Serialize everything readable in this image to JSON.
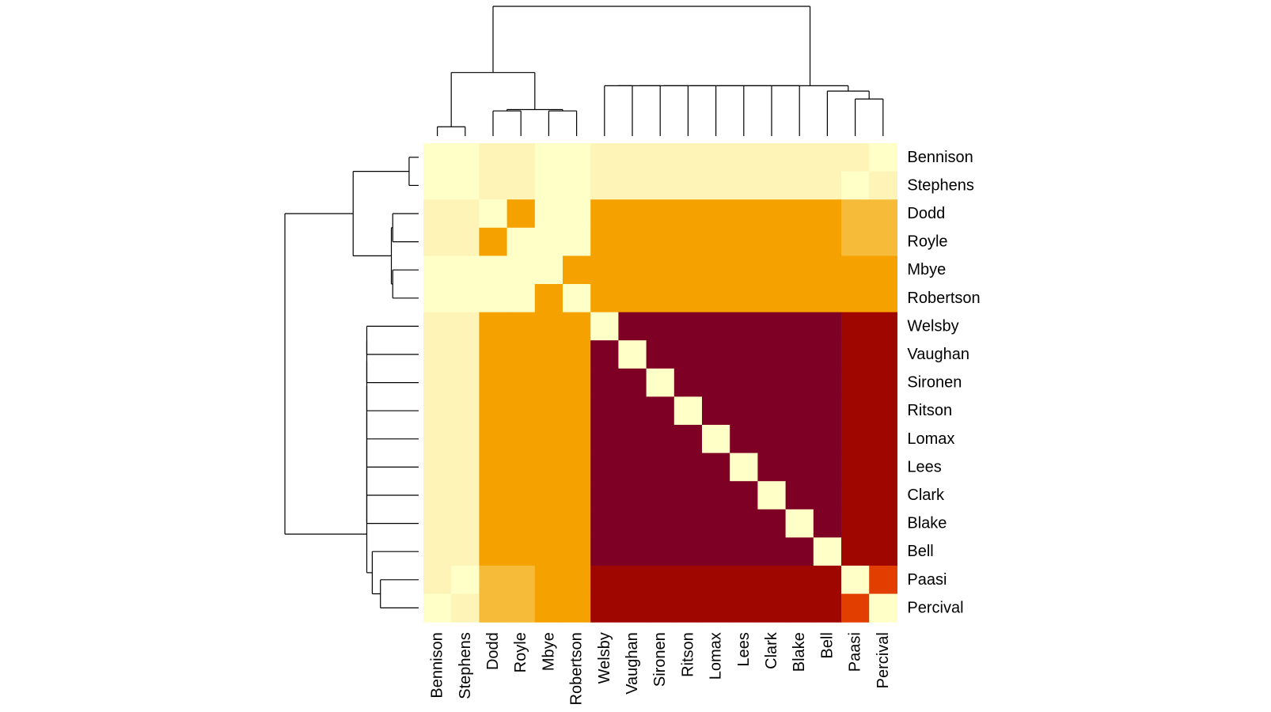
{
  "chart_data": {
    "type": "heatmap",
    "title": "",
    "xlabel": "",
    "ylabel": "",
    "labels": [
      "Bennison",
      "Stephens",
      "Dodd",
      "Royle",
      "Mbye",
      "Robertson",
      "Welsby",
      "Vaughan",
      "Sironen",
      "Ritson",
      "Lomax",
      "Lees",
      "Clark",
      "Blake",
      "Bell",
      "Paasi",
      "Percival"
    ],
    "palette": [
      "#FFFFC8",
      "#FEF4B8",
      "#F7BB3A",
      "#F5A200",
      "#E13E00",
      "#A00600",
      "#7F0025"
    ],
    "matrix": [
      [
        0,
        0,
        1,
        1,
        0,
        0,
        1,
        1,
        1,
        1,
        1,
        1,
        1,
        1,
        1,
        1,
        0
      ],
      [
        0,
        0,
        1,
        1,
        0,
        0,
        1,
        1,
        1,
        1,
        1,
        1,
        1,
        1,
        1,
        0,
        1
      ],
      [
        1,
        1,
        0,
        3,
        0,
        0,
        3,
        3,
        3,
        3,
        3,
        3,
        3,
        3,
        3,
        2,
        2
      ],
      [
        1,
        1,
        3,
        0,
        0,
        0,
        3,
        3,
        3,
        3,
        3,
        3,
        3,
        3,
        3,
        2,
        2
      ],
      [
        0,
        0,
        0,
        0,
        0,
        3,
        3,
        3,
        3,
        3,
        3,
        3,
        3,
        3,
        3,
        3,
        3
      ],
      [
        0,
        0,
        0,
        0,
        3,
        0,
        3,
        3,
        3,
        3,
        3,
        3,
        3,
        3,
        3,
        3,
        3
      ],
      [
        1,
        1,
        3,
        3,
        3,
        3,
        0,
        6,
        6,
        6,
        6,
        6,
        6,
        6,
        6,
        5,
        5
      ],
      [
        1,
        1,
        3,
        3,
        3,
        3,
        6,
        0,
        6,
        6,
        6,
        6,
        6,
        6,
        6,
        5,
        5
      ],
      [
        1,
        1,
        3,
        3,
        3,
        3,
        6,
        6,
        0,
        6,
        6,
        6,
        6,
        6,
        6,
        5,
        5
      ],
      [
        1,
        1,
        3,
        3,
        3,
        3,
        6,
        6,
        6,
        0,
        6,
        6,
        6,
        6,
        6,
        5,
        5
      ],
      [
        1,
        1,
        3,
        3,
        3,
        3,
        6,
        6,
        6,
        6,
        0,
        6,
        6,
        6,
        6,
        5,
        5
      ],
      [
        1,
        1,
        3,
        3,
        3,
        3,
        6,
        6,
        6,
        6,
        6,
        0,
        6,
        6,
        6,
        5,
        5
      ],
      [
        1,
        1,
        3,
        3,
        3,
        3,
        6,
        6,
        6,
        6,
        6,
        6,
        0,
        6,
        6,
        5,
        5
      ],
      [
        1,
        1,
        3,
        3,
        3,
        3,
        6,
        6,
        6,
        6,
        6,
        6,
        6,
        0,
        6,
        5,
        5
      ],
      [
        1,
        1,
        3,
        3,
        3,
        3,
        6,
        6,
        6,
        6,
        6,
        6,
        6,
        6,
        0,
        5,
        5
      ],
      [
        1,
        0,
        2,
        2,
        3,
        3,
        5,
        5,
        5,
        5,
        5,
        5,
        5,
        5,
        5,
        0,
        4
      ],
      [
        0,
        1,
        2,
        2,
        3,
        3,
        5,
        5,
        5,
        5,
        5,
        5,
        5,
        5,
        5,
        4,
        0
      ]
    ],
    "dendrogram": {
      "merges": [
        [
          -1,
          -2,
          0.35
        ],
        [
          -3,
          -4,
          0.95
        ],
        [
          -5,
          -6,
          0.95
        ],
        [
          2,
          3,
          1.0
        ],
        [
          -16,
          -17,
          1.4
        ],
        [
          -15,
          5,
          1.7
        ],
        [
          -7,
          -8,
          1.9
        ],
        [
          7,
          -9,
          1.9
        ],
        [
          8,
          -10,
          1.9
        ],
        [
          9,
          -11,
          1.9
        ],
        [
          10,
          -12,
          1.9
        ],
        [
          11,
          -13,
          1.9
        ],
        [
          12,
          -14,
          1.9
        ],
        [
          13,
          6,
          1.9
        ],
        [
          1,
          4,
          2.4
        ],
        [
          14,
          15,
          4.9
        ]
      ],
      "max_height": 4.9
    },
    "legend": "none",
    "grid": false
  }
}
